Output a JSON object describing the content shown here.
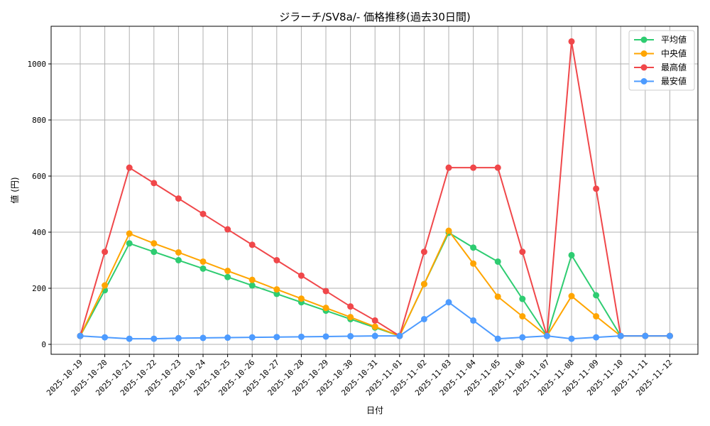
{
  "chart_data": {
    "type": "line",
    "title": "ジラーチ/SV8a/- 価格推移(過去30日間)",
    "xlabel": "日付",
    "ylabel": "値 (円)",
    "ylim": [
      -35,
      1135
    ],
    "yticks": [
      0,
      200,
      400,
      600,
      800,
      1000
    ],
    "grid": true,
    "legend_position": "upper right",
    "x": [
      "2025-10-19",
      "2025-10-20",
      "2025-10-21",
      "2025-10-22",
      "2025-10-23",
      "2025-10-24",
      "2025-10-25",
      "2025-10-26",
      "2025-10-27",
      "2025-10-28",
      "2025-10-29",
      "2025-10-30",
      "2025-10-31",
      "2025-11-01",
      "2025-11-02",
      "2025-11-03",
      "2025-11-04",
      "2025-11-05",
      "2025-11-06",
      "2025-11-07",
      "2025-11-08",
      "2025-11-09",
      "2025-11-10",
      "2025-11-11",
      "2025-11-12"
    ],
    "series": [
      {
        "name": "平均値",
        "color": "#2ecc71",
        "values": [
          30,
          193,
          360,
          330,
          300,
          270,
          240,
          210,
          180,
          150,
          120,
          90,
          60,
          30,
          215,
          398,
          345,
          295,
          162,
          30,
          318,
          175,
          30,
          30,
          30
        ]
      },
      {
        "name": "中央値",
        "color": "#ffa500",
        "values": [
          30,
          210,
          395,
          360,
          328,
          295,
          262,
          230,
          196,
          163,
          130,
          97,
          63,
          30,
          215,
          405,
          288,
          170,
          100,
          30,
          172,
          100,
          30,
          30,
          30
        ]
      },
      {
        "name": "最高値",
        "color": "#f0474a",
        "values": [
          30,
          330,
          630,
          575,
          520,
          465,
          410,
          355,
          300,
          245,
          190,
          135,
          85,
          30,
          330,
          630,
          630,
          630,
          330,
          30,
          1080,
          555,
          30,
          30,
          30
        ]
      },
      {
        "name": "最安値",
        "color": "#4d9bff",
        "values": [
          30,
          25,
          20,
          20,
          22,
          23,
          24,
          25,
          26,
          27,
          28,
          29,
          30,
          30,
          90,
          150,
          85,
          20,
          25,
          30,
          20,
          25,
          30,
          30,
          30
        ]
      }
    ]
  }
}
